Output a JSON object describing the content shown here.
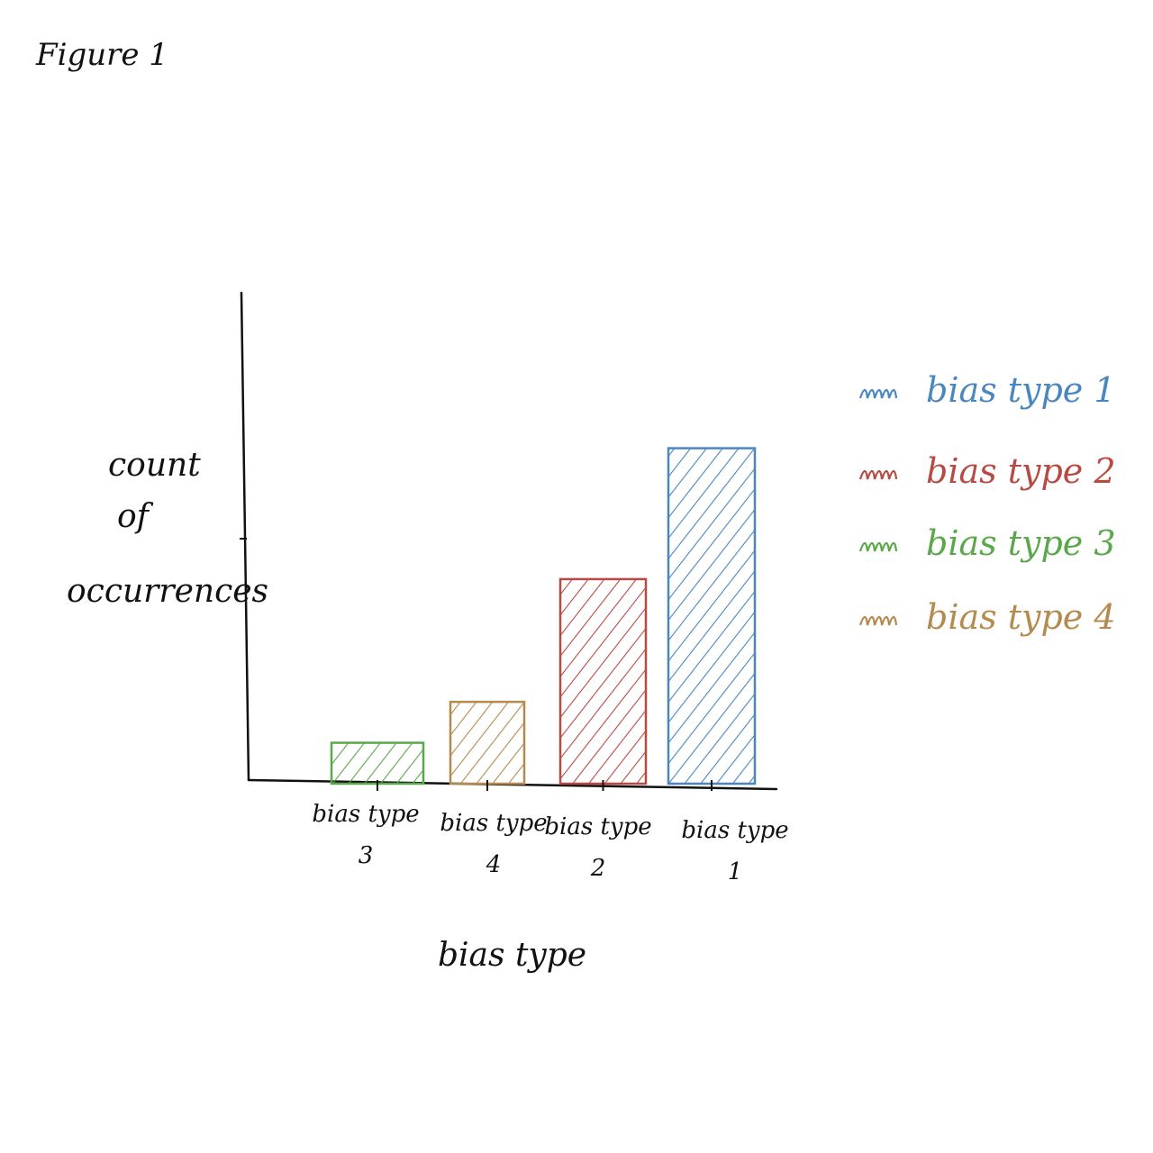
{
  "figure_label": "Figure 1",
  "chart_data": {
    "type": "bar",
    "title": "",
    "xlabel": "bias type",
    "ylabel": "count of occurrences",
    "categories": [
      "bias type 3",
      "bias type 4",
      "bias type 2",
      "bias type 1"
    ],
    "category_lines": [
      [
        "bias type",
        "3"
      ],
      [
        "bias type",
        "4"
      ],
      [
        "bias type",
        "2"
      ],
      [
        "bias type",
        "1"
      ]
    ],
    "values": [
      1,
      2,
      5,
      8.2
    ],
    "ylim": [
      0,
      12
    ],
    "grid": false,
    "y_ticks_labeled": false,
    "bar_fill": "diagonal-hatch",
    "colors": [
      "#5aa84a",
      "#b58a4e",
      "#b84a44",
      "#4a86c0"
    ],
    "legend": {
      "position": "right",
      "entries": [
        {
          "label": "bias type 1",
          "color": "#4a86c0"
        },
        {
          "label": "bias type 2",
          "color": "#b84a44"
        },
        {
          "label": "bias type 3",
          "color": "#5aa84a"
        },
        {
          "label": "bias type 4",
          "color": "#b58a4e"
        }
      ]
    }
  }
}
